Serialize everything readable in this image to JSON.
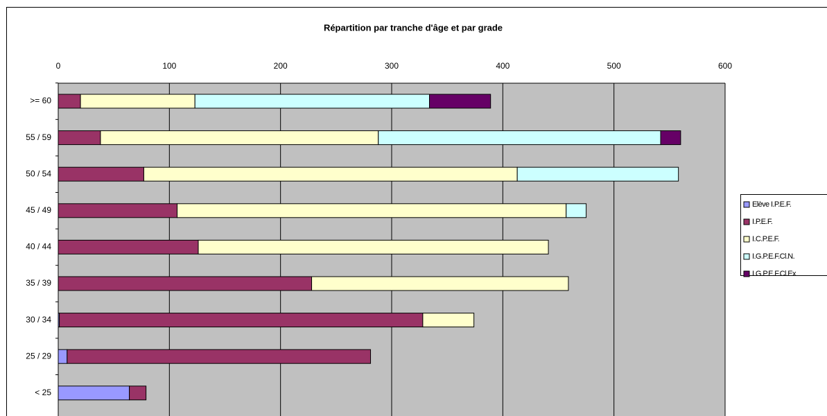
{
  "chart_data": {
    "type": "stacked-barh",
    "title": "Répartition par tranche d'âge et par grade",
    "categories": [
      ">= 60",
      "55 / 59",
      "50 / 54",
      "45 / 49",
      "40 / 44",
      "35 / 39",
      "30 / 34",
      "25 / 29",
      "< 25"
    ],
    "series": [
      {
        "name": "Elève I.P.E.F.",
        "color": "#9999ff",
        "values": [
          0,
          0,
          0,
          0,
          0,
          0,
          1,
          8,
          64
        ]
      },
      {
        "name": "I.P.E.F.",
        "color": "#993366",
        "values": [
          20,
          38,
          77,
          107,
          126,
          228,
          327,
          273,
          15
        ]
      },
      {
        "name": "I.C.P.E.F.",
        "color": "#ffffcc",
        "values": [
          103,
          250,
          336,
          350,
          315,
          231,
          46,
          0,
          0
        ]
      },
      {
        "name": "I.G.P.E.F.Cl.N.",
        "color": "#ccffff",
        "values": [
          211,
          254,
          145,
          18,
          0,
          0,
          0,
          0,
          0
        ]
      },
      {
        "name": "I.G.P.E.F.Cl.Ex",
        "color": "#660066",
        "values": [
          55,
          18,
          0,
          0,
          0,
          0,
          0,
          0,
          0
        ]
      }
    ],
    "xlim": [
      0,
      600
    ],
    "xticks": [
      0,
      100,
      200,
      300,
      400,
      500,
      600
    ],
    "grid": true,
    "legend": "right"
  }
}
